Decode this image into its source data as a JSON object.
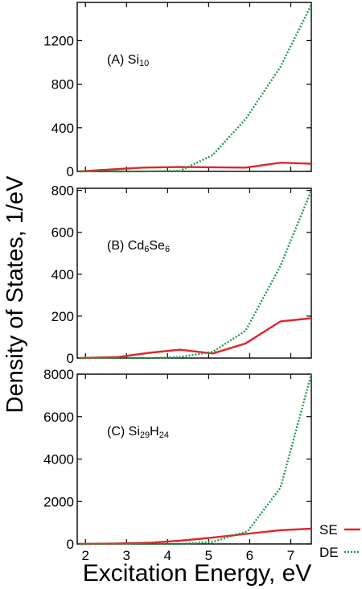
{
  "figure": {
    "ylabel": "Density of States, 1/eV",
    "xlabel": "Excitation Energy, eV",
    "legend": [
      {
        "label": "SE",
        "color": "#e0252b",
        "style": "solid"
      },
      {
        "label": "DE",
        "color": "#1e9a4a",
        "style": "dotted"
      }
    ]
  },
  "chart_data": [
    {
      "type": "line",
      "panel_label": "(A) Si",
      "panel_sub": "10",
      "xlim": [
        1.8,
        7.5
      ],
      "ylim": [
        0,
        1550
      ],
      "xticks": [
        2,
        3,
        4,
        5,
        6,
        7
      ],
      "yticks": [
        0,
        400,
        800,
        1200
      ],
      "series": [
        {
          "name": "SE",
          "x": [
            1.85,
            2.5,
            3.4,
            4.3,
            5.1,
            5.9,
            6.75,
            7.5
          ],
          "y": [
            0,
            15,
            35,
            40,
            38,
            35,
            80,
            70
          ]
        },
        {
          "name": "DE",
          "x": [
            1.85,
            2.5,
            3.4,
            4.3,
            5.1,
            5.9,
            6.75,
            7.5
          ],
          "y": [
            0,
            0,
            0,
            5,
            150,
            480,
            960,
            1530
          ]
        }
      ]
    },
    {
      "type": "line",
      "panel_label": "(B) Cd",
      "panel_sub": "6",
      "panel_label2": "Se",
      "panel_sub2": "6",
      "xlim": [
        1.8,
        7.5
      ],
      "ylim": [
        0,
        810
      ],
      "xticks": [
        2,
        3,
        4,
        5,
        6,
        7
      ],
      "yticks": [
        0,
        200,
        400,
        600,
        800
      ],
      "series": [
        {
          "name": "SE",
          "x": [
            1.85,
            2.8,
            3.55,
            4.3,
            5.1,
            5.9,
            6.75,
            7.5
          ],
          "y": [
            0,
            5,
            25,
            40,
            22,
            70,
            175,
            190
          ]
        },
        {
          "name": "DE",
          "x": [
            1.85,
            2.8,
            3.55,
            4.3,
            5.1,
            5.9,
            6.75,
            7.5
          ],
          "y": [
            0,
            0,
            0,
            5,
            30,
            130,
            440,
            800
          ]
        }
      ]
    },
    {
      "type": "line",
      "panel_label": "(C) Si",
      "panel_sub": "29",
      "panel_label2": "H",
      "panel_sub2": "24",
      "xlim": [
        1.8,
        7.5
      ],
      "ylim": [
        0,
        8000
      ],
      "xticks": [
        2,
        3,
        4,
        5,
        6,
        7
      ],
      "yticks": [
        0,
        2000,
        4000,
        6000,
        8000
      ],
      "series": [
        {
          "name": "SE",
          "x": [
            1.85,
            2.8,
            3.6,
            4.3,
            5.1,
            5.95,
            6.75,
            7.5
          ],
          "y": [
            0,
            20,
            60,
            150,
            300,
            480,
            650,
            720
          ]
        },
        {
          "name": "DE",
          "x": [
            1.85,
            2.8,
            3.6,
            4.3,
            5.1,
            5.95,
            6.75,
            7.5
          ],
          "y": [
            0,
            0,
            0,
            0,
            100,
            600,
            2650,
            8000
          ]
        }
      ]
    }
  ]
}
